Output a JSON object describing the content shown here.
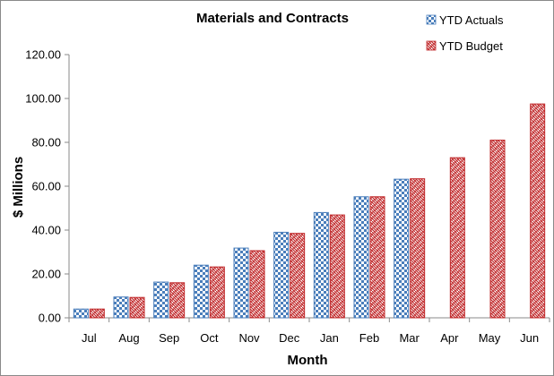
{
  "chart_data": {
    "type": "bar",
    "title": "Materials and Contracts",
    "xlabel": "Month",
    "ylabel": "$ Millions",
    "categories": [
      "Jul",
      "Aug",
      "Sep",
      "Oct",
      "Nov",
      "Dec",
      "Jan",
      "Feb",
      "Mar",
      "Apr",
      "May",
      "Jun"
    ],
    "series": [
      {
        "name": "YTD Actuals",
        "values": [
          4.0,
          9.5,
          16.3,
          24.0,
          31.8,
          39.0,
          48.0,
          55.2,
          63.2,
          null,
          null,
          null
        ],
        "color": "#4a7ebb",
        "pattern": "checker"
      },
      {
        "name": "YTD Budget",
        "values": [
          4.0,
          9.3,
          16.0,
          23.2,
          30.6,
          38.5,
          46.9,
          55.2,
          63.4,
          73.0,
          81.0,
          97.5
        ],
        "color": "#c0282a",
        "pattern": "weave"
      }
    ],
    "ylim": [
      0,
      120
    ],
    "yticks": [
      "0.00",
      "20.00",
      "40.00",
      "60.00",
      "80.00",
      "100.00",
      "120.00"
    ],
    "ytick_values": [
      0,
      20,
      40,
      60,
      80,
      100,
      120
    ],
    "legend": "top-right",
    "grid": false
  }
}
